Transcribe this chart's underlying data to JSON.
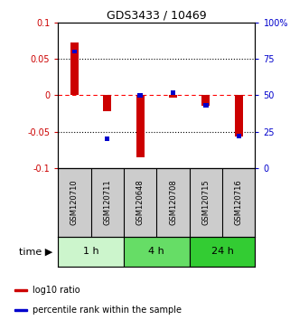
{
  "title": "GDS3433 / 10469",
  "samples": [
    "GSM120710",
    "GSM120711",
    "GSM120648",
    "GSM120708",
    "GSM120715",
    "GSM120716"
  ],
  "log10_ratio": [
    0.072,
    -0.022,
    -0.085,
    -0.003,
    -0.015,
    -0.057
  ],
  "percentile_rank": [
    80,
    20,
    50,
    52,
    43,
    22
  ],
  "ylim_left": [
    -0.1,
    0.1
  ],
  "ylim_right": [
    0,
    100
  ],
  "yticks_left": [
    -0.1,
    -0.05,
    0,
    0.05,
    0.1
  ],
  "yticks_right": [
    0,
    25,
    50,
    75,
    100
  ],
  "ytick_labels_left": [
    "-0.1",
    "-0.05",
    "0",
    "0.05",
    "0.1"
  ],
  "ytick_labels_right": [
    "0",
    "25",
    "50",
    "75",
    "100%"
  ],
  "time_groups": [
    {
      "label": "1 h",
      "cols": [
        0,
        1
      ],
      "color": "#ccf5cc"
    },
    {
      "label": "4 h",
      "cols": [
        2,
        3
      ],
      "color": "#66dd66"
    },
    {
      "label": "24 h",
      "cols": [
        4,
        5
      ],
      "color": "#33cc33"
    }
  ],
  "bar_color": "#cc0000",
  "blue_color": "#0000cc",
  "bar_width": 0.25,
  "left_tick_color": "#cc0000",
  "right_tick_color": "#0000cc",
  "legend_items": [
    "log10 ratio",
    "percentile rank within the sample"
  ],
  "legend_colors": [
    "#cc0000",
    "#0000cc"
  ],
  "sample_box_color": "#cccccc",
  "time_label": "time"
}
